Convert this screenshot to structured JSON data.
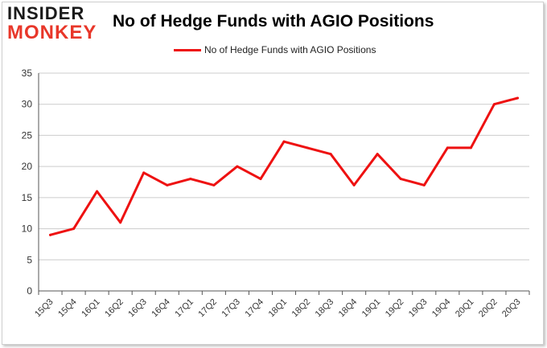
{
  "logo": {
    "line1": "INSIDER",
    "line2": "MONKEY"
  },
  "colors": {
    "line": "#ee1111",
    "grid": "#cccccc",
    "axis": "#555555",
    "logo_accent": "#e8372a"
  },
  "chart_data": {
    "type": "line",
    "title": "No of Hedge Funds with AGIO Positions",
    "xlabel": "",
    "ylabel": "",
    "legend_position": "top",
    "grid": true,
    "ylim": [
      0,
      35
    ],
    "yticks": [
      0,
      5,
      10,
      15,
      20,
      25,
      30,
      35
    ],
    "categories": [
      "15Q3",
      "15Q4",
      "16Q1",
      "16Q2",
      "16Q3",
      "16Q4",
      "17Q1",
      "17Q2",
      "17Q3",
      "17Q4",
      "18Q1",
      "18Q2",
      "18Q3",
      "18Q4",
      "19Q1",
      "19Q2",
      "19Q3",
      "19Q4",
      "20Q1",
      "20Q2",
      "20Q3"
    ],
    "series": [
      {
        "name": "No of Hedge Funds with AGIO Positions",
        "values": [
          9,
          10,
          16,
          11,
          19,
          17,
          18,
          17,
          20,
          18,
          24,
          23,
          22,
          17,
          22,
          18,
          17,
          23,
          23,
          30,
          31
        ]
      }
    ]
  }
}
